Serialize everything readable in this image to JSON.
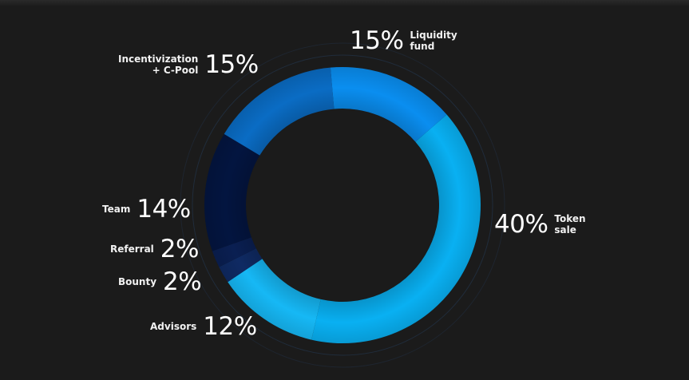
{
  "chart_data": {
    "type": "pie",
    "variant": "donut",
    "title": "",
    "slices": [
      {
        "label": "Token sale",
        "value": 40,
        "pct_label": "40%",
        "color": "#09b0f2"
      },
      {
        "label": "Advisors",
        "value": 12,
        "pct_label": "12%",
        "color": "#16b8f5"
      },
      {
        "label": "Bounty",
        "value": 2,
        "pct_label": "2%",
        "color": "#0f2a63"
      },
      {
        "label": "Referral",
        "value": 2,
        "pct_label": "2%",
        "color": "#0a1f52"
      },
      {
        "label": "Team",
        "value": 14,
        "pct_label": "14%",
        "color": "#031540"
      },
      {
        "label": "Incentivization + C-Pool",
        "value": 15,
        "pct_label": "15%",
        "color": "#0a6cc4"
      },
      {
        "label": "Liquidity fund",
        "value": 15,
        "pct_label": "15%",
        "color": "#0a8ef0"
      }
    ],
    "label_lines": {
      "Token sale": [
        "Token",
        "sale"
      ],
      "Advisors": [
        "Advisors"
      ],
      "Bounty": [
        "Bounty"
      ],
      "Referral": [
        "Referral"
      ],
      "Team": [
        "Team"
      ],
      "Incentivization + C-Pool": [
        "Incentivization",
        "+ C-Pool"
      ],
      "Liquidity fund": [
        "Liquidity",
        "fund"
      ]
    },
    "legend": "none",
    "grid": false
  },
  "colors": {
    "background": "#1b1b1b",
    "ring_guide": "#243a56",
    "text": "#ffffff"
  }
}
